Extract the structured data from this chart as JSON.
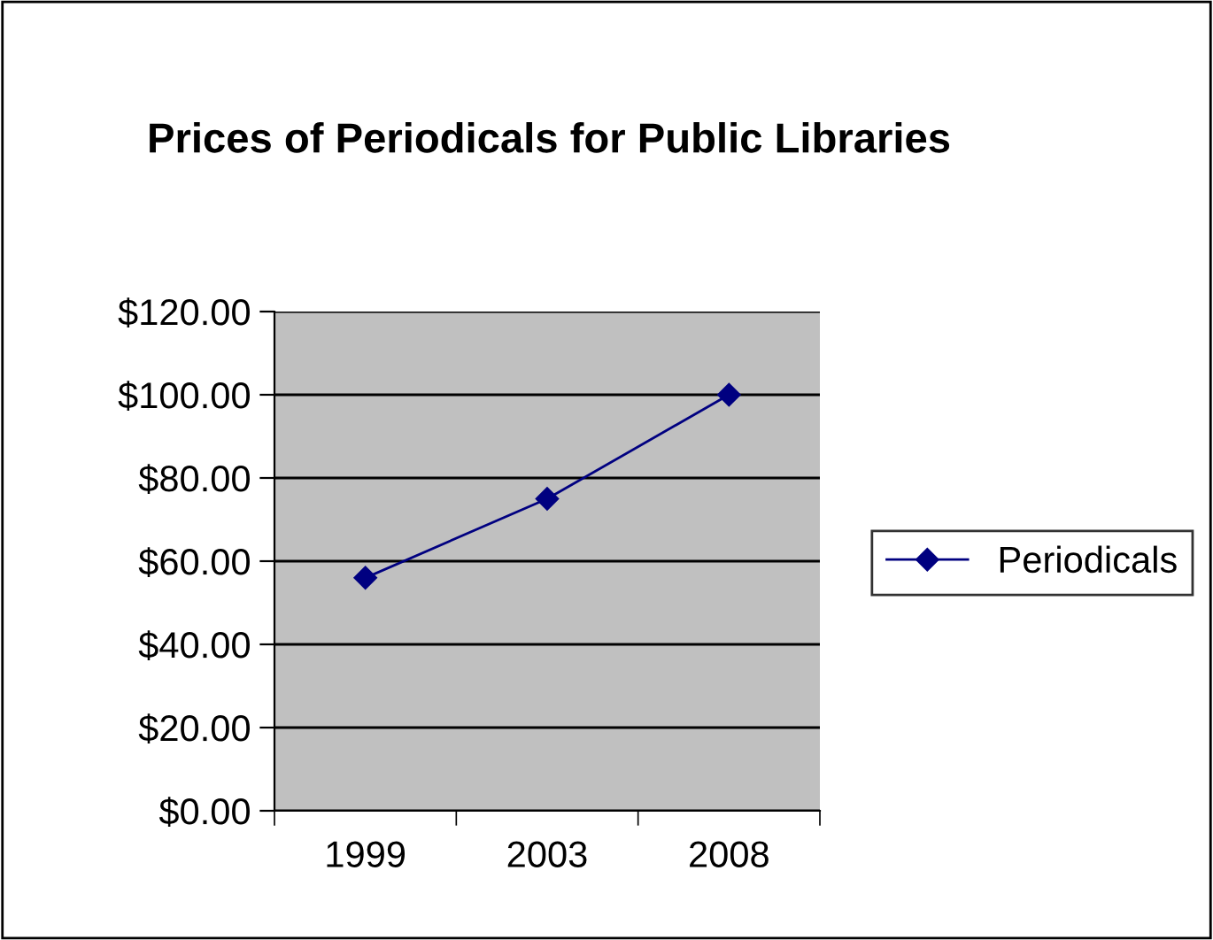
{
  "chart_data": {
    "type": "line",
    "title": "Prices of Periodicals for Public Libraries",
    "categories": [
      "1999",
      "2003",
      "2008"
    ],
    "series": [
      {
        "name": "Periodicals",
        "color": "#000080",
        "values": [
          56,
          75,
          100
        ]
      }
    ],
    "ylim": [
      0,
      120
    ],
    "yticks": [
      {
        "value": 0,
        "label": "$0.00"
      },
      {
        "value": 20,
        "label": "$20.00"
      },
      {
        "value": 40,
        "label": "$40.00"
      },
      {
        "value": 60,
        "label": "$60.00"
      },
      {
        "value": 80,
        "label": "$80.00"
      },
      {
        "value": 100,
        "label": "$100.00"
      },
      {
        "value": 120,
        "label": "$120.00"
      }
    ],
    "grid": "y",
    "legend": "right",
    "marker": "diamond",
    "line_style": "solid"
  }
}
